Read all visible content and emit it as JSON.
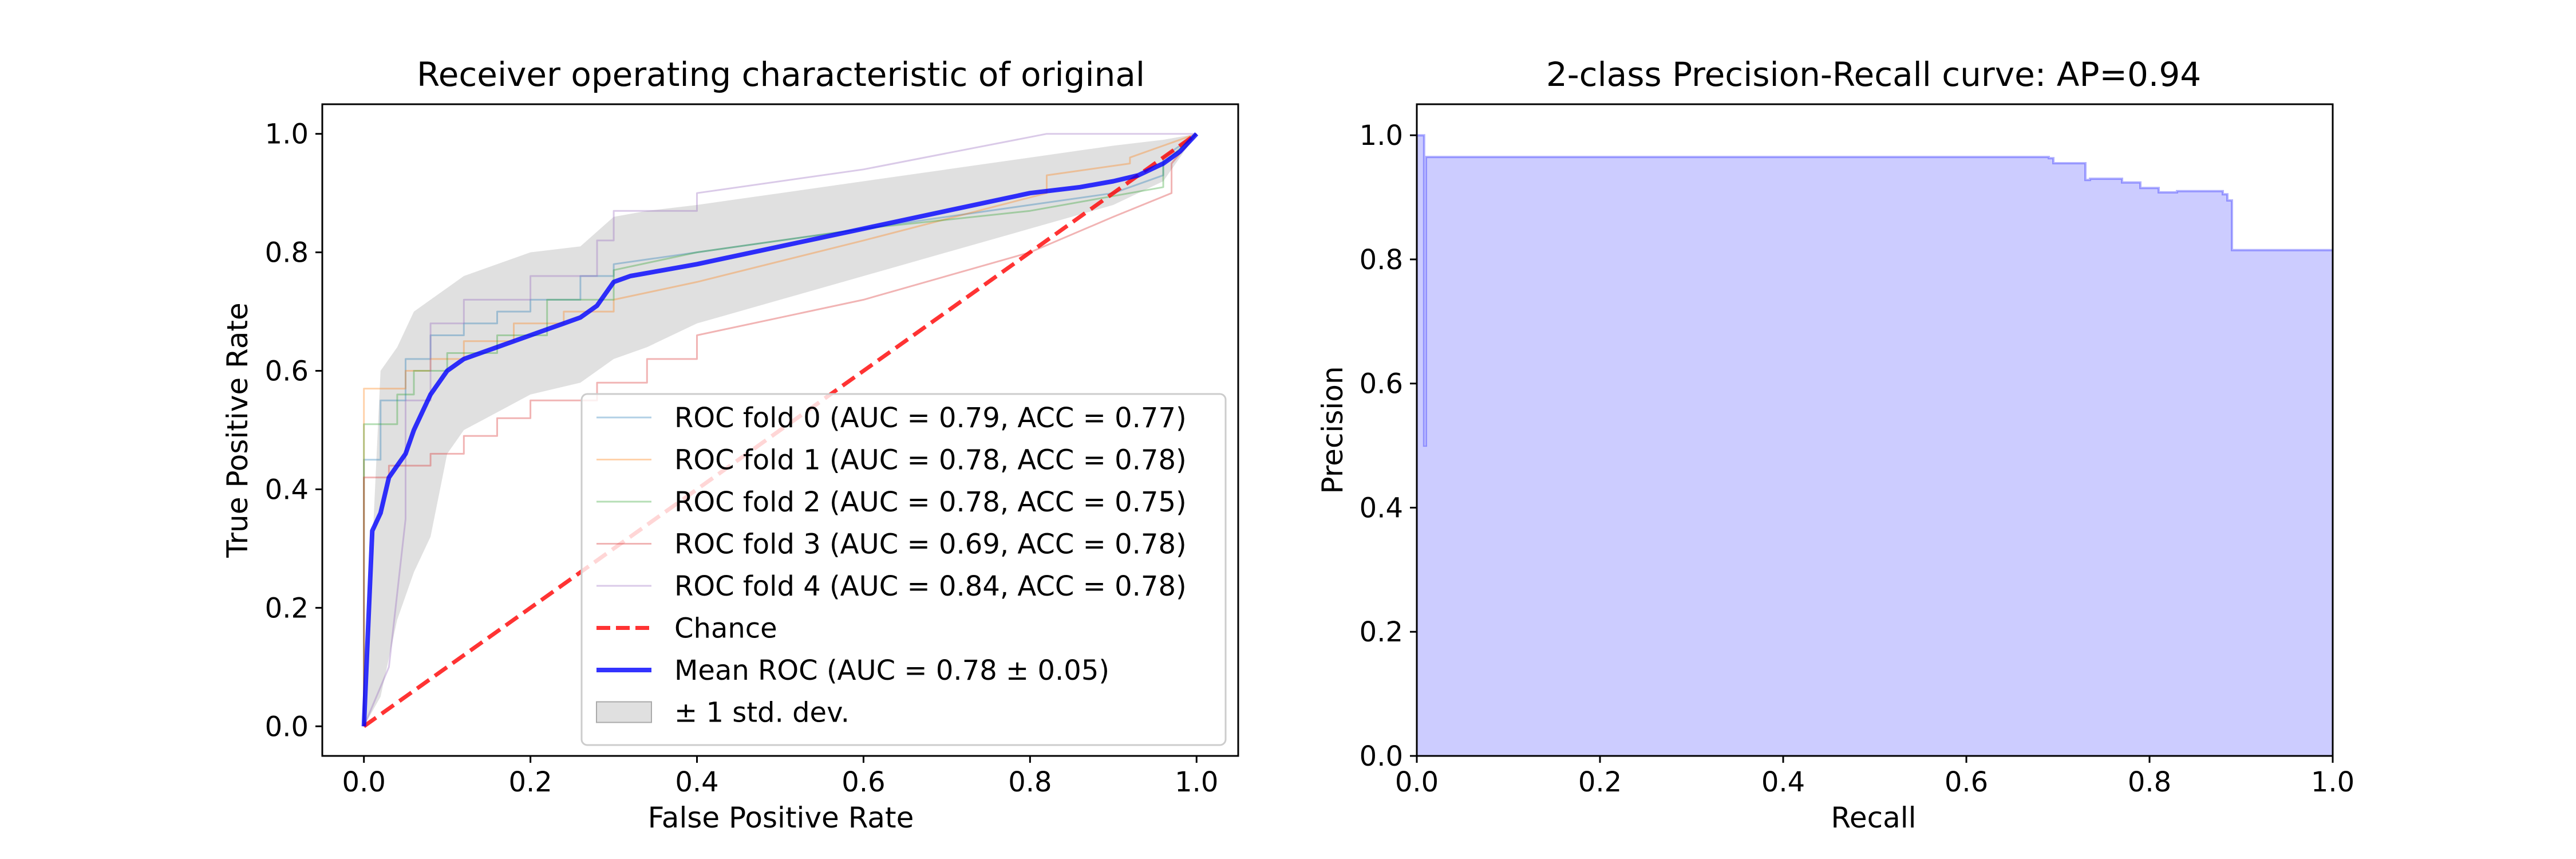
{
  "chart_data": [
    {
      "type": "line",
      "title": "Receiver operating characteristic of original",
      "xlabel": "False Positive Rate",
      "ylabel": "True Positive Rate",
      "xlim": [
        -0.05,
        1.05
      ],
      "ylim": [
        -0.05,
        1.05
      ],
      "xticks": [
        "0.0",
        "0.2",
        "0.4",
        "0.6",
        "0.8",
        "1.0"
      ],
      "yticks": [
        "0.0",
        "0.2",
        "0.4",
        "0.6",
        "0.8",
        "1.0"
      ],
      "legend_position": "lower-right",
      "series": [
        {
          "name": "ROC fold 0 (AUC = 0.79, ACC = 0.77)",
          "color": "#1f77b4",
          "style": "thin",
          "x": [
            0,
            0,
            0.02,
            0.02,
            0.05,
            0.05,
            0.08,
            0.08,
            0.12,
            0.12,
            0.16,
            0.16,
            0.2,
            0.2,
            0.26,
            0.26,
            0.3,
            0.3,
            0.4,
            0.6,
            0.8,
            0.9,
            0.96,
            0.96,
            1.0
          ],
          "y": [
            0,
            0.45,
            0.45,
            0.55,
            0.55,
            0.62,
            0.62,
            0.66,
            0.66,
            0.68,
            0.68,
            0.7,
            0.7,
            0.72,
            0.72,
            0.76,
            0.76,
            0.78,
            0.8,
            0.84,
            0.88,
            0.9,
            0.93,
            0.96,
            1.0
          ]
        },
        {
          "name": "ROC fold 1 (AUC = 0.78, ACC = 0.78)",
          "color": "#ff7f0e",
          "style": "thin",
          "x": [
            0,
            0,
            0.05,
            0.05,
            0.08,
            0.08,
            0.12,
            0.12,
            0.18,
            0.18,
            0.24,
            0.24,
            0.3,
            0.3,
            0.4,
            0.6,
            0.82,
            0.82,
            0.92,
            0.92,
            1.0
          ],
          "y": [
            0,
            0.57,
            0.57,
            0.6,
            0.6,
            0.62,
            0.62,
            0.65,
            0.65,
            0.68,
            0.68,
            0.7,
            0.7,
            0.72,
            0.75,
            0.82,
            0.9,
            0.93,
            0.95,
            0.96,
            1.0
          ]
        },
        {
          "name": "ROC fold 2 (AUC = 0.78, ACC = 0.75)",
          "color": "#2ca02c",
          "style": "thin",
          "x": [
            0,
            0,
            0.04,
            0.04,
            0.06,
            0.06,
            0.1,
            0.1,
            0.16,
            0.16,
            0.22,
            0.22,
            0.3,
            0.3,
            0.4,
            0.6,
            0.8,
            0.96,
            0.96,
            1.0
          ],
          "y": [
            0,
            0.51,
            0.51,
            0.56,
            0.56,
            0.6,
            0.6,
            0.63,
            0.63,
            0.66,
            0.66,
            0.72,
            0.72,
            0.77,
            0.8,
            0.84,
            0.87,
            0.91,
            0.95,
            1.0
          ]
        },
        {
          "name": "ROC fold 3 (AUC = 0.69, ACC = 0.78)",
          "color": "#d62728",
          "style": "thin",
          "x": [
            0,
            0,
            0.03,
            0.03,
            0.08,
            0.08,
            0.12,
            0.12,
            0.16,
            0.16,
            0.2,
            0.2,
            0.28,
            0.28,
            0.34,
            0.34,
            0.4,
            0.4,
            0.6,
            0.8,
            0.9,
            0.97,
            0.97,
            1.0
          ],
          "y": [
            0,
            0.42,
            0.42,
            0.44,
            0.44,
            0.46,
            0.46,
            0.49,
            0.49,
            0.52,
            0.52,
            0.55,
            0.55,
            0.58,
            0.58,
            0.62,
            0.62,
            0.66,
            0.72,
            0.8,
            0.86,
            0.9,
            0.95,
            1.0
          ]
        },
        {
          "name": "ROC fold 4 (AUC = 0.84, ACC = 0.78)",
          "color": "#9467bd",
          "style": "thin",
          "x": [
            0,
            0.03,
            0.05,
            0.05,
            0.08,
            0.08,
            0.12,
            0.12,
            0.2,
            0.2,
            0.28,
            0.28,
            0.3,
            0.3,
            0.4,
            0.4,
            0.6,
            0.82,
            1.0
          ],
          "y": [
            0,
            0.1,
            0.35,
            0.55,
            0.55,
            0.68,
            0.68,
            0.72,
            0.72,
            0.76,
            0.76,
            0.82,
            0.82,
            0.87,
            0.87,
            0.9,
            0.94,
            1.0,
            1.0
          ]
        },
        {
          "name": "Chance",
          "color": "#ff0000",
          "style": "dashed",
          "x": [
            0,
            1
          ],
          "y": [
            0,
            1
          ]
        },
        {
          "name": "Mean ROC (AUC = 0.78 ± 0.05)",
          "color": "#0000ff",
          "style": "bold",
          "x": [
            0,
            0.01,
            0.02,
            0.03,
            0.04,
            0.05,
            0.06,
            0.07,
            0.08,
            0.1,
            0.12,
            0.14,
            0.16,
            0.18,
            0.2,
            0.22,
            0.24,
            0.26,
            0.28,
            0.3,
            0.32,
            0.36,
            0.4,
            0.5,
            0.6,
            0.7,
            0.8,
            0.86,
            0.9,
            0.93,
            0.96,
            0.98,
            1.0
          ],
          "y": [
            0,
            0.33,
            0.36,
            0.42,
            0.44,
            0.46,
            0.5,
            0.53,
            0.56,
            0.6,
            0.62,
            0.63,
            0.64,
            0.65,
            0.66,
            0.67,
            0.68,
            0.69,
            0.71,
            0.75,
            0.76,
            0.77,
            0.78,
            0.81,
            0.84,
            0.87,
            0.9,
            0.91,
            0.92,
            0.93,
            0.95,
            0.97,
            1.0
          ]
        },
        {
          "name": "± 1 std. dev.",
          "color": "#cccccc",
          "style": "band",
          "x": [
            0,
            0.02,
            0.04,
            0.06,
            0.08,
            0.1,
            0.12,
            0.16,
            0.2,
            0.26,
            0.3,
            0.34,
            0.4,
            0.5,
            0.6,
            0.7,
            0.8,
            0.9,
            0.96,
            1.0
          ],
          "upper": [
            0,
            0.6,
            0.64,
            0.7,
            0.72,
            0.74,
            0.76,
            0.78,
            0.8,
            0.81,
            0.86,
            0.87,
            0.88,
            0.9,
            0.92,
            0.94,
            0.96,
            0.98,
            0.99,
            1.0
          ],
          "lower": [
            0,
            0.05,
            0.18,
            0.26,
            0.32,
            0.46,
            0.5,
            0.53,
            0.56,
            0.58,
            0.62,
            0.64,
            0.68,
            0.72,
            0.76,
            0.8,
            0.84,
            0.88,
            0.92,
            1.0
          ]
        }
      ]
    },
    {
      "type": "area",
      "title": "2-class Precision-Recall curve: AP=0.94",
      "xlabel": "Recall",
      "ylabel": "Precision",
      "xlim": [
        0.0,
        1.0
      ],
      "ylim": [
        0.0,
        1.05
      ],
      "xticks": [
        "0.0",
        "0.2",
        "0.4",
        "0.6",
        "0.8",
        "1.0"
      ],
      "yticks": [
        "0.0",
        "0.2",
        "0.4",
        "0.6",
        "0.8",
        "1.0"
      ],
      "color": "#0000ff",
      "series": [
        {
          "recall": [
            0.0,
            0.0,
            0.008,
            0.008,
            0.01,
            0.01,
            0.69,
            0.69,
            0.695,
            0.695,
            0.73,
            0.73,
            0.735,
            0.735,
            0.77,
            0.77,
            0.79,
            0.79,
            0.81,
            0.81,
            0.83,
            0.83,
            0.88,
            0.88,
            0.885,
            0.885,
            0.89,
            0.89,
            1.0
          ],
          "precision": [
            1.0,
            1.0,
            1.0,
            0.5,
            0.5,
            0.965,
            0.965,
            0.963,
            0.963,
            0.955,
            0.955,
            0.928,
            0.928,
            0.93,
            0.93,
            0.924,
            0.924,
            0.915,
            0.915,
            0.908,
            0.908,
            0.91,
            0.91,
            0.905,
            0.905,
            0.895,
            0.895,
            0.815,
            0.815
          ]
        }
      ]
    }
  ]
}
